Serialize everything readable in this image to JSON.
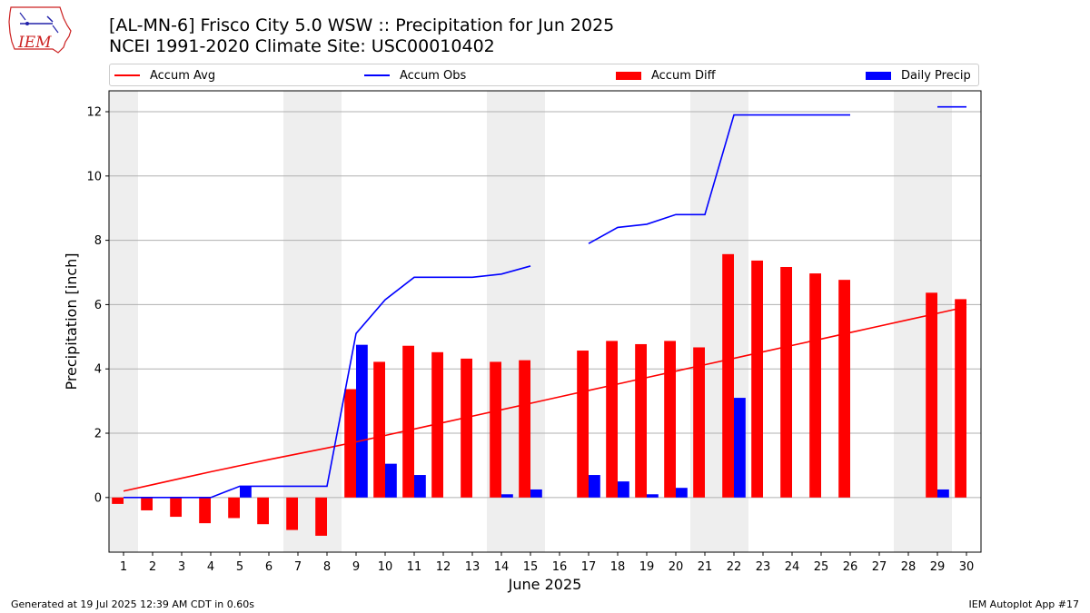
{
  "header": {
    "title_line1": "[AL-MN-6] Frisco City 5.0 WSW :: Precipitation for Jun 2025",
    "title_line2": "NCEI 1991-2020 Climate Site: USC00010402",
    "logo_text": "IEM"
  },
  "footer": {
    "generated": "Generated at 19 Jul 2025 12:39 AM CDT in 0.60s",
    "app": "IEM Autoplot App #17"
  },
  "colors": {
    "accum_avg": "#ff0000",
    "accum_obs": "#0000ff",
    "accum_diff": "#ff0000",
    "daily_precip": "#0000ff",
    "weekend_shade": "#eeeeee",
    "grid": "#b0b0b0"
  },
  "chart_data": {
    "type": "bar",
    "xlabel": "June 2025",
    "ylabel": "Precipitation [inch]",
    "xlim": [
      0.5,
      30.5
    ],
    "ylim": [
      -1.7,
      12.65
    ],
    "yticks": [
      0,
      2,
      4,
      6,
      8,
      10,
      12
    ],
    "grid": "horizontal",
    "legend_placement": "top",
    "weekend_days": [
      1,
      7,
      8,
      14,
      15,
      21,
      22,
      28,
      29
    ],
    "days": [
      1,
      2,
      3,
      4,
      5,
      6,
      7,
      8,
      9,
      10,
      11,
      12,
      13,
      14,
      15,
      16,
      17,
      18,
      19,
      20,
      21,
      22,
      23,
      24,
      25,
      26,
      27,
      28,
      29,
      30
    ],
    "series": [
      {
        "name": "Accum Avg",
        "kind": "line",
        "color": "#ff0000",
        "values": [
          0.2,
          0.4,
          0.6,
          0.8,
          0.99,
          1.18,
          1.36,
          1.54,
          1.73,
          1.93,
          2.13,
          2.33,
          2.53,
          2.73,
          2.93,
          3.13,
          3.33,
          3.53,
          3.73,
          3.93,
          4.13,
          4.33,
          4.53,
          4.73,
          4.93,
          5.13,
          5.33,
          5.53,
          5.73,
          5.93
        ]
      },
      {
        "name": "Accum Obs",
        "kind": "line",
        "color": "#0000ff",
        "values": [
          0,
          0,
          0,
          0,
          0.35,
          0.35,
          0.35,
          0.35,
          5.1,
          6.15,
          6.85,
          6.85,
          6.85,
          6.95,
          7.2,
          null,
          7.9,
          8.4,
          8.5,
          8.8,
          8.8,
          11.9,
          11.9,
          11.9,
          11.9,
          11.9,
          null,
          null,
          12.15,
          12.15
        ]
      },
      {
        "name": "Accum Diff",
        "kind": "bar",
        "color": "#ff0000",
        "values": [
          -0.2,
          -0.4,
          -0.6,
          -0.8,
          -0.64,
          -0.83,
          -1.01,
          -1.19,
          3.37,
          4.22,
          4.72,
          4.52,
          4.32,
          4.22,
          4.27,
          null,
          4.57,
          4.87,
          4.77,
          4.87,
          4.67,
          7.57,
          7.37,
          7.17,
          6.97,
          6.77,
          null,
          null,
          6.37,
          6.17
        ]
      },
      {
        "name": "Daily Precip",
        "kind": "bar",
        "color": "#0000ff",
        "values": [
          0,
          0,
          0,
          0,
          0.35,
          0,
          0,
          0,
          4.75,
          1.05,
          0.7,
          0,
          0,
          0.1,
          0.25,
          null,
          0.7,
          0.5,
          0.1,
          0.3,
          0,
          3.1,
          0,
          0,
          0,
          0,
          null,
          null,
          0.25,
          0
        ]
      }
    ]
  }
}
